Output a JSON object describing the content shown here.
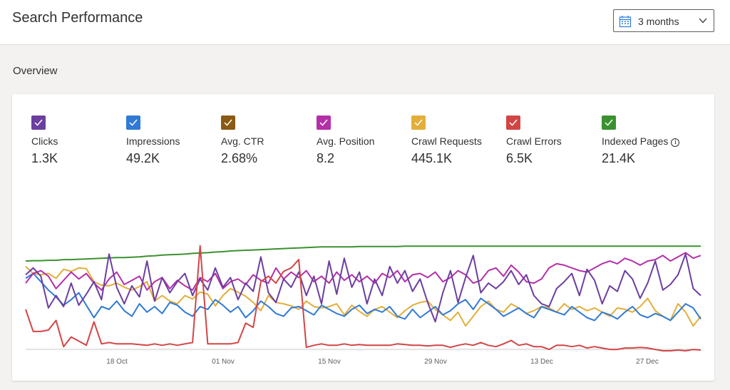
{
  "header": {
    "title": "Search Performance",
    "range": "3 months",
    "calendar_icon": "calendar-icon",
    "dropdown_icon": "chevron-down-icon"
  },
  "section": {
    "title": "Overview"
  },
  "metrics": [
    {
      "label": "Clicks",
      "value": "1.3K",
      "color": "#6b3fa0"
    },
    {
      "label": "Impressions",
      "value": "49.2K",
      "color": "#2f7ad6"
    },
    {
      "label": "Avg. CTR",
      "value": "2.68%",
      "color": "#8a5a14"
    },
    {
      "label": "Avg. Position",
      "value": "8.2",
      "color": "#b52fa8"
    },
    {
      "label": "Crawl Requests",
      "value": "445.1K",
      "color": "#e3ae3a"
    },
    {
      "label": "Crawl Errors",
      "value": "6.5K",
      "color": "#d24545"
    },
    {
      "label": "Indexed Pages",
      "value": "21.4K",
      "color": "#3b9130",
      "info_icon": "info-icon"
    }
  ],
  "chart_data": {
    "type": "line",
    "x_tick_labels": [
      "18 Oct",
      "01 Nov",
      "15 Nov",
      "29 Nov",
      "13 Dec",
      "27 Dec"
    ],
    "grid": false,
    "series": [
      {
        "name": "Indexed Pages",
        "color": "#3b9130",
        "values": [
          30,
          29.5,
          29.5,
          29,
          29,
          28,
          28,
          27.5,
          27,
          26.5,
          26,
          25.5,
          25,
          25,
          24.5,
          24,
          23,
          22.5,
          21.5,
          21,
          20.5,
          20,
          19,
          18.5,
          18,
          17,
          16.5,
          15.5,
          15,
          14.5,
          14,
          13.5,
          13,
          12.5,
          12,
          11.5,
          11,
          10.5,
          10,
          9.5,
          9.5,
          9.5,
          9.5,
          9.5,
          9,
          9,
          9,
          9,
          9,
          9,
          8.5,
          8.5,
          8.5,
          8.5,
          8.5,
          8.5,
          8.5,
          8.5,
          8.5,
          8.5,
          8.5,
          8.5,
          8.5,
          8.5,
          8.5,
          8.5,
          8.5,
          8.5,
          8.5,
          8.5,
          8.5,
          8.5,
          8.5,
          8.5,
          8.5,
          8.5,
          8.5,
          8.5,
          8.5,
          8.5,
          8.5,
          8.5,
          8.5,
          8.5,
          8.5,
          8.5,
          8.5,
          8.5,
          8.5,
          8.5
        ]
      },
      {
        "name": "Crawl Requests",
        "color": "#e3ae3a",
        "values": [
          38,
          48,
          50,
          48,
          55,
          42,
          45,
          40,
          41,
          60,
          65,
          66,
          62,
          68,
          72,
          67,
          60,
          88,
          80,
          88,
          92,
          80,
          85,
          75,
          78,
          95,
          80,
          70,
          75,
          81,
          90,
          102,
          80,
          90,
          92,
          95,
          100,
          88,
          96,
          98,
          96,
          92,
          108,
          94,
          103,
          110,
          100,
          96,
          104,
          112,
          102,
          94,
          90,
          88,
          100,
          108,
          116,
          104,
          124,
          110,
          96,
          88,
          100,
          104,
          92,
          98,
          106,
          102,
          96,
          98,
          104,
          92,
          100,
          96,
          102,
          98,
          104,
          110,
          98,
          100,
          104,
          96,
          84,
          102,
          110,
          116,
          92,
          104,
          124,
          110
        ]
      },
      {
        "name": "Impressions",
        "color": "#2f7ad6",
        "values": [
          55,
          48,
          60,
          72,
          82,
          94,
          86,
          76,
          94,
          112,
          96,
          100,
          88,
          102,
          110,
          92,
          104,
          96,
          106,
          90,
          94,
          104,
          110,
          96,
          100,
          86,
          94,
          104,
          96,
          112,
          102,
          88,
          96,
          106,
          110,
          98,
          96,
          102,
          108,
          94,
          100,
          106,
          110,
          100,
          94,
          106,
          100,
          104,
          96,
          110,
          114,
          100,
          112,
          104,
          96,
          108,
          102,
          92,
          86,
          100,
          84,
          92,
          100,
          110,
          104,
          98,
          106,
          112,
          96,
          100,
          104,
          108,
          96,
          104,
          112,
          116,
          104,
          108,
          114,
          104,
          96,
          108,
          112,
          106,
          110,
          116,
          104,
          92,
          98,
          114
        ]
      },
      {
        "name": "Avg. Position",
        "color": "#b52fa8",
        "values": [
          62,
          48,
          44,
          52,
          70,
          58,
          46,
          56,
          48,
          62,
          72,
          56,
          46,
          64,
          58,
          52,
          72,
          60,
          54,
          70,
          58,
          66,
          72,
          54,
          60,
          48,
          70,
          60,
          56,
          64,
          50,
          58,
          62,
          40,
          56,
          46,
          54,
          44,
          60,
          52,
          62,
          46,
          58,
          50,
          60,
          52,
          62,
          48,
          54,
          44,
          60,
          50,
          48,
          54,
          46,
          60,
          54,
          44,
          50,
          62,
          58,
          44,
          40,
          52,
          36,
          46,
          60,
          62,
          56,
          40,
          34,
          36,
          40,
          44,
          46,
          40,
          34,
          30,
          34,
          26,
          30,
          36,
          30,
          28,
          22,
          30,
          24,
          18,
          26,
          22
        ]
      },
      {
        "name": "Clicks",
        "color": "#6b3fa0",
        "values": [
          50,
          40,
          52,
          98,
          80,
          96,
          62,
          94,
          78,
          60,
          86,
          20,
          68,
          92,
          66,
          82,
          30,
          88,
          54,
          76,
          60,
          48,
          80,
          56,
          72,
          40,
          68,
          54,
          86,
          62,
          74,
          24,
          76,
          90,
          56,
          68,
          46,
          80,
          52,
          92,
          30,
          78,
          26,
          68,
          46,
          92,
          56,
          80,
          38,
          62,
          44,
          74,
          56,
          90,
          118,
          76,
          44,
          90,
          54,
          22,
          76,
          62,
          70,
          60,
          44,
          64,
          50,
          80,
          92,
          96,
          70,
          60,
          48,
          80,
          42,
          58,
          92,
          66,
          74,
          44,
          56,
          84,
          62,
          30,
          72,
          64,
          50,
          20,
          70,
          80
        ]
      },
      {
        "name": "Crawl Errors",
        "color": "#d24545",
        "values": [
          100,
          132,
          132,
          130,
          116,
          154,
          140,
          146,
          152,
          118,
          150,
          148,
          150,
          150,
          150,
          151,
          152,
          150,
          152,
          150,
          152,
          150,
          148,
          8,
          150,
          150,
          150,
          150,
          148,
          120,
          126,
          60,
          52,
          62,
          45,
          40,
          28,
          155,
          152,
          150,
          152,
          152,
          150,
          152,
          151,
          152,
          152,
          152,
          152,
          150,
          151,
          152,
          152,
          153,
          152,
          152,
          155,
          152,
          150,
          152,
          148,
          152,
          154,
          150,
          145,
          152,
          150,
          154,
          154,
          158,
          152,
          152,
          154,
          152,
          156,
          154,
          156,
          158,
          158,
          156,
          156,
          155,
          156,
          158,
          160,
          160,
          159,
          160,
          158,
          159
        ]
      }
    ]
  }
}
